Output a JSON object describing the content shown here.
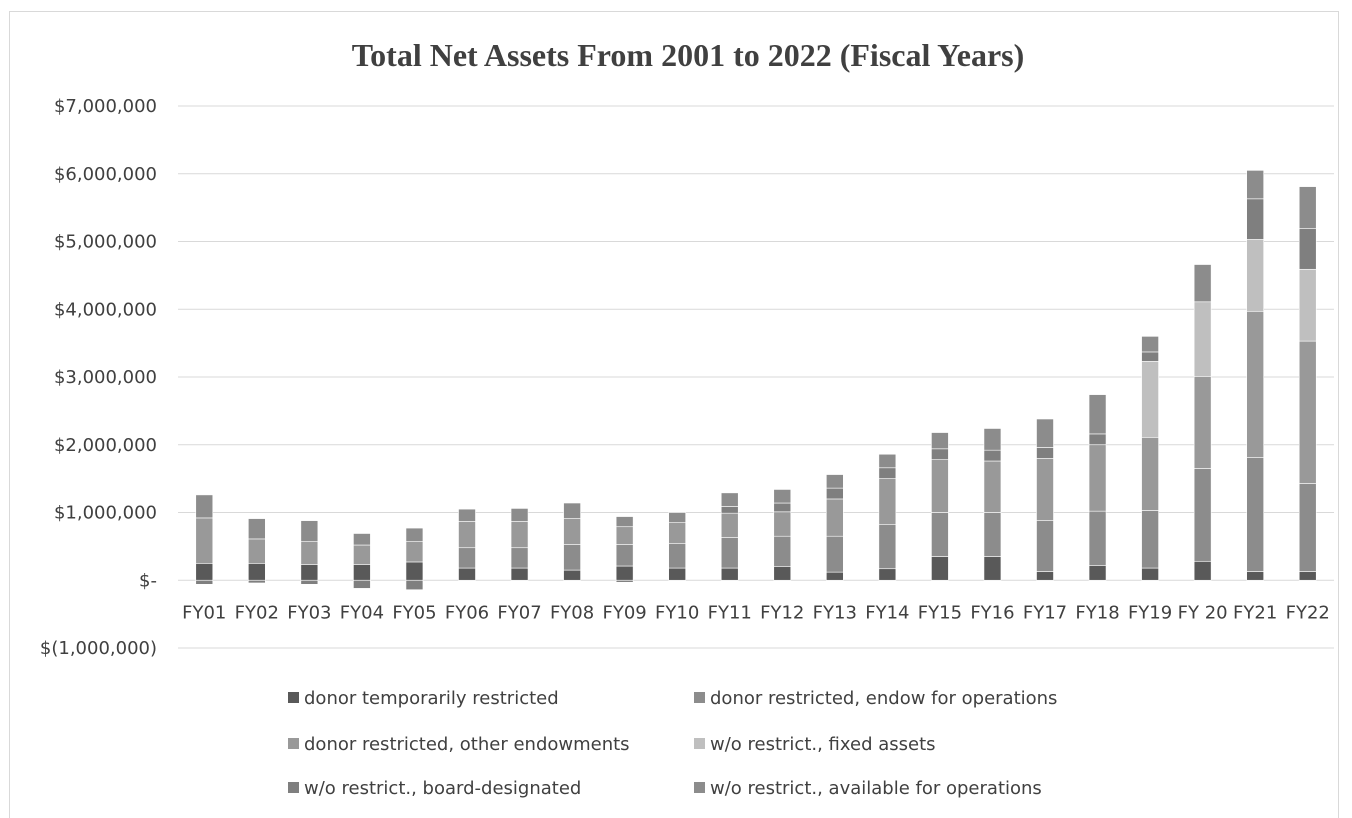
{
  "chart_data": {
    "type": "bar",
    "stacked": true,
    "title": "Total Net Assets From 2001 to 2022 (Fiscal Years)",
    "xlabel": "",
    "ylabel": "",
    "ylim": [
      -1000000,
      7000000
    ],
    "y_ticks": [
      {
        "value": 7000000,
        "label": "$7,000,000"
      },
      {
        "value": 6000000,
        "label": "$6,000,000"
      },
      {
        "value": 5000000,
        "label": "$5,000,000"
      },
      {
        "value": 4000000,
        "label": "$4,000,000"
      },
      {
        "value": 3000000,
        "label": "$3,000,000"
      },
      {
        "value": 2000000,
        "label": "$2,000,000"
      },
      {
        "value": 1000000,
        "label": "$1,000,000"
      },
      {
        "value": 0,
        "label": "$-"
      },
      {
        "value": -1000000,
        "label": "$(1,000,000)"
      }
    ],
    "grid": true,
    "legend_position": "bottom",
    "categories": [
      "FY01",
      "FY02",
      "FY03",
      "FY04",
      "FY05",
      "FY06",
      "FY07",
      "FY08",
      "FY09",
      "FY10",
      "FY11",
      "FY12",
      "FY13",
      "FY14",
      "FY15",
      "FY16",
      "FY17",
      "FY18",
      "FY19",
      "FY 20",
      "FY21",
      "FY22"
    ],
    "series": [
      {
        "name": "donor temporarily restricted",
        "color": "#595959",
        "values": [
          250000,
          250000,
          230000,
          230000,
          270000,
          180000,
          180000,
          150000,
          210000,
          180000,
          180000,
          200000,
          120000,
          170000,
          350000,
          350000,
          130000,
          220000,
          180000,
          280000,
          130000,
          130000
        ]
      },
      {
        "name": "donor restricted, endow for operations",
        "color": "#8c8c8c",
        "values": [
          0,
          0,
          0,
          0,
          0,
          300000,
          300000,
          380000,
          320000,
          360000,
          450000,
          450000,
          530000,
          650000,
          650000,
          650000,
          750000,
          800000,
          850000,
          1370000,
          1680000,
          1300000
        ]
      },
      {
        "name": "donor restricted, other endowments",
        "color": "#999999",
        "values": [
          670000,
          360000,
          340000,
          290000,
          300000,
          390000,
          390000,
          380000,
          260000,
          310000,
          360000,
          360000,
          550000,
          680000,
          780000,
          760000,
          920000,
          980000,
          1080000,
          1360000,
          2160000,
          2100000
        ]
      },
      {
        "name": "w/o restrict., fixed assets",
        "color": "#bfbfbf",
        "values": [
          0,
          0,
          0,
          0,
          0,
          0,
          0,
          0,
          0,
          0,
          0,
          0,
          0,
          0,
          0,
          0,
          0,
          0,
          1120000,
          1100000,
          1060000,
          1060000
        ]
      },
      {
        "name": "w/o restrict., board-designated",
        "color": "#7f7f7f",
        "values": [
          -60000,
          -40000,
          -60000,
          -120000,
          -140000,
          0,
          0,
          0,
          -30000,
          0,
          100000,
          130000,
          160000,
          160000,
          160000,
          160000,
          160000,
          160000,
          140000,
          0,
          600000,
          600000
        ]
      },
      {
        "name": "w/o restrict., available for operations",
        "color": "#8c8c8c",
        "values": [
          340000,
          300000,
          310000,
          170000,
          200000,
          180000,
          190000,
          230000,
          150000,
          150000,
          200000,
          200000,
          200000,
          200000,
          240000,
          320000,
          420000,
          580000,
          230000,
          550000,
          420000,
          620000
        ]
      }
    ]
  }
}
